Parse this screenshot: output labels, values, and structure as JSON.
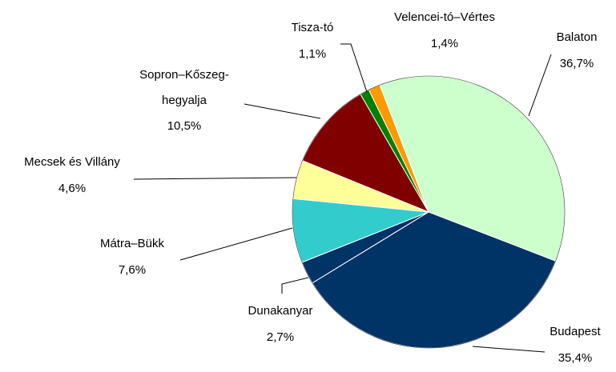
{
  "chart_data": {
    "type": "pie",
    "categories": [
      "Balaton",
      "Budapest",
      "Dunakanyar",
      "Mátra–Bükk",
      "Mecsek és Villány",
      "Sopron–Kőszeg-hegyalja",
      "Tisza-tó",
      "Velencei-tó–Vértes"
    ],
    "values": [
      36.7,
      35.4,
      2.7,
      7.6,
      4.6,
      10.5,
      1.1,
      1.4
    ],
    "value_labels": [
      "36,7%",
      "35,4%",
      "2,7%",
      "7,6%",
      "4,6%",
      "10,5%",
      "1,1%",
      "1,4%"
    ],
    "colors": [
      "#ccffcc",
      "#003366",
      "#003366",
      "#33cccc",
      "#ffff99",
      "#800000",
      "#008000",
      "#ff9900"
    ]
  }
}
